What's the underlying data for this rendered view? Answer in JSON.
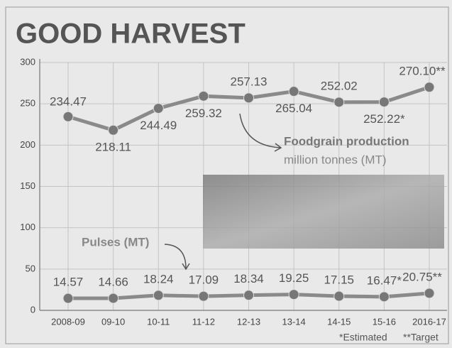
{
  "chart_data": {
    "type": "line",
    "title": "GOOD HARVEST",
    "categories": [
      "2008-09",
      "09-10",
      "10-11",
      "11-12",
      "12-13",
      "13-14",
      "14-15",
      "15-16",
      "2016-17"
    ],
    "series": [
      {
        "name": "Foodgrain production",
        "color": "#8a8a8a",
        "values": [
          234.47,
          218.11,
          244.49,
          259.32,
          257.13,
          265.04,
          252.02,
          252.22,
          270.1
        ],
        "value_labels": [
          "234.47",
          "218.11",
          "244.49",
          "259.32",
          "257.13",
          "265.04",
          "252.02",
          "252.22*",
          "270.10**"
        ]
      },
      {
        "name": "Pulses (MT)",
        "color": "#8a8a8a",
        "values": [
          14.57,
          14.66,
          18.24,
          17.09,
          18.34,
          19.25,
          17.15,
          16.47,
          20.75
        ],
        "value_labels": [
          "14.57",
          "14.66",
          "18.24",
          "17.09",
          "18.34",
          "19.25",
          "17.15",
          "16.47*",
          "20.75**"
        ]
      }
    ],
    "annotations": [
      "million tonnes (MT)",
      "*Estimated",
      "**Target"
    ],
    "ylim": [
      0,
      300
    ],
    "yticks": [
      0,
      50,
      100,
      150,
      200,
      250,
      300
    ],
    "grid": true
  }
}
